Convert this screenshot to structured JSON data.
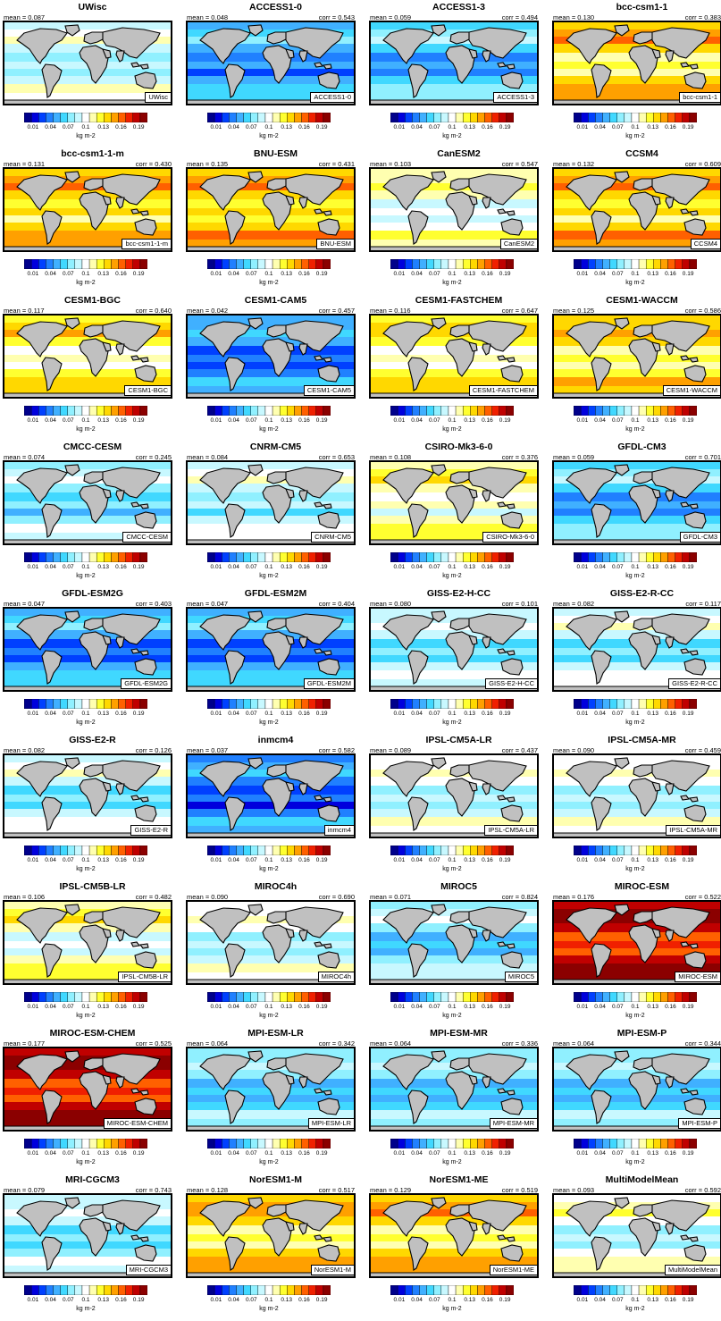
{
  "figure": {
    "colorbar": {
      "tick_labels": [
        "0.01",
        "0.04",
        "0.07",
        "0.1",
        "0.13",
        "0.16",
        "0.19"
      ],
      "units": "kg m-2",
      "colors": [
        "#00008b",
        "#0000dd",
        "#0040ff",
        "#2080ff",
        "#40b0ff",
        "#40d8ff",
        "#90f0ff",
        "#c8f8ff",
        "#ffffff",
        "#ffffb0",
        "#ffff30",
        "#ffd800",
        "#ffa000",
        "#ff6000",
        "#f02000",
        "#c00000",
        "#8b0000"
      ]
    },
    "land_color": "#c0c0c0",
    "mean_prefix": "mean = ",
    "corr_prefix": "corr = "
  },
  "chart_data": [
    {
      "type": "heatmap",
      "title": "UWisc",
      "label": "UWisc",
      "mean": "0.087",
      "corr": ""
    },
    {
      "type": "heatmap",
      "title": "ACCESS1-0",
      "label": "ACCESS1-0",
      "mean": "0.048",
      "corr": "0.543"
    },
    {
      "type": "heatmap",
      "title": "ACCESS1-3",
      "label": "ACCESS1-3",
      "mean": "0.059",
      "corr": "0.494"
    },
    {
      "type": "heatmap",
      "title": "bcc-csm1-1",
      "label": "bcc-csm1-1",
      "mean": "0.130",
      "corr": "0.383"
    },
    {
      "type": "heatmap",
      "title": "bcc-csm1-1-m",
      "label": "bcc-csm1-1-m",
      "mean": "0.131",
      "corr": "0.430"
    },
    {
      "type": "heatmap",
      "title": "BNU-ESM",
      "label": "BNU-ESM",
      "mean": "0.135",
      "corr": "0.431"
    },
    {
      "type": "heatmap",
      "title": "CanESM2",
      "label": "CanESM2",
      "mean": "0.103",
      "corr": "0.547"
    },
    {
      "type": "heatmap",
      "title": "CCSM4",
      "label": "CCSM4",
      "mean": "0.132",
      "corr": "0.609"
    },
    {
      "type": "heatmap",
      "title": "CESM1-BGC",
      "label": "CESM1-BGC",
      "mean": "0.117",
      "corr": "0.640"
    },
    {
      "type": "heatmap",
      "title": "CESM1-CAM5",
      "label": "CESM1-CAM5",
      "mean": "0.042",
      "corr": "0.457"
    },
    {
      "type": "heatmap",
      "title": "CESM1-FASTCHEM",
      "label": "CESM1-FASTCHEM",
      "mean": "0.116",
      "corr": "0.647"
    },
    {
      "type": "heatmap",
      "title": "CESM1-WACCM",
      "label": "CESM1-WACCM",
      "mean": "0.125",
      "corr": "0.586"
    },
    {
      "type": "heatmap",
      "title": "CMCC-CESM",
      "label": "CMCC-CESM",
      "mean": "0.074",
      "corr": "0.245"
    },
    {
      "type": "heatmap",
      "title": "CNRM-CM5",
      "label": "CNRM-CM5",
      "mean": "0.084",
      "corr": "0.653"
    },
    {
      "type": "heatmap",
      "title": "CSIRO-Mk3-6-0",
      "label": "CSIRO-Mk3-6-0",
      "mean": "0.108",
      "corr": "0.376"
    },
    {
      "type": "heatmap",
      "title": "GFDL-CM3",
      "label": "GFDL-CM3",
      "mean": "0.059",
      "corr": "0.701"
    },
    {
      "type": "heatmap",
      "title": "GFDL-ESM2G",
      "label": "GFDL-ESM2G",
      "mean": "0.047",
      "corr": "0.403"
    },
    {
      "type": "heatmap",
      "title": "GFDL-ESM2M",
      "label": "GFDL-ESM2M",
      "mean": "0.047",
      "corr": "0.404"
    },
    {
      "type": "heatmap",
      "title": "GISS-E2-H-CC",
      "label": "GISS-E2-H-CC",
      "mean": "0.080",
      "corr": "0.101"
    },
    {
      "type": "heatmap",
      "title": "GISS-E2-R-CC",
      "label": "GISS-E2-R-CC",
      "mean": "0.082",
      "corr": "0.117"
    },
    {
      "type": "heatmap",
      "title": "GISS-E2-R",
      "label": "GISS-E2-R",
      "mean": "0.082",
      "corr": "0.126"
    },
    {
      "type": "heatmap",
      "title": "inmcm4",
      "label": "inmcm4",
      "mean": "0.037",
      "corr": "0.582"
    },
    {
      "type": "heatmap",
      "title": "IPSL-CM5A-LR",
      "label": "IPSL-CM5A-LR",
      "mean": "0.089",
      "corr": "0.437"
    },
    {
      "type": "heatmap",
      "title": "IPSL-CM5A-MR",
      "label": "IPSL-CM5A-MR",
      "mean": "0.090",
      "corr": "0.459"
    },
    {
      "type": "heatmap",
      "title": "IPSL-CM5B-LR",
      "label": "IPSL-CM5B-LR",
      "mean": "0.106",
      "corr": "0.482"
    },
    {
      "type": "heatmap",
      "title": "MIROC4h",
      "label": "MIROC4h",
      "mean": "0.090",
      "corr": "0.690"
    },
    {
      "type": "heatmap",
      "title": "MIROC5",
      "label": "MIROC5",
      "mean": "0.071",
      "corr": "0.824"
    },
    {
      "type": "heatmap",
      "title": "MIROC-ESM",
      "label": "MIROC-ESM",
      "mean": "0.176",
      "corr": "0.522"
    },
    {
      "type": "heatmap",
      "title": "MIROC-ESM-CHEM",
      "label": "MIROC-ESM-CHEM",
      "mean": "0.177",
      "corr": "0.525"
    },
    {
      "type": "heatmap",
      "title": "MPI-ESM-LR",
      "label": "MPI-ESM-LR",
      "mean": "0.064",
      "corr": "0.342"
    },
    {
      "type": "heatmap",
      "title": "MPI-ESM-MR",
      "label": "MPI-ESM-MR",
      "mean": "0.064",
      "corr": "0.336"
    },
    {
      "type": "heatmap",
      "title": "MPI-ESM-P",
      "label": "MPI-ESM-P",
      "mean": "0.064",
      "corr": "0.344"
    },
    {
      "type": "heatmap",
      "title": "MRI-CGCM3",
      "label": "MRI-CGCM3",
      "mean": "0.079",
      "corr": "0.743"
    },
    {
      "type": "heatmap",
      "title": "NorESM1-M",
      "label": "NorESM1-M",
      "mean": "0.128",
      "corr": "0.517"
    },
    {
      "type": "heatmap",
      "title": "NorESM1-ME",
      "label": "NorESM1-ME",
      "mean": "0.129",
      "corr": "0.519"
    },
    {
      "type": "heatmap",
      "title": "MultiModelMean",
      "label": "MultiModelMean",
      "mean": "0.093",
      "corr": "0.592"
    }
  ]
}
